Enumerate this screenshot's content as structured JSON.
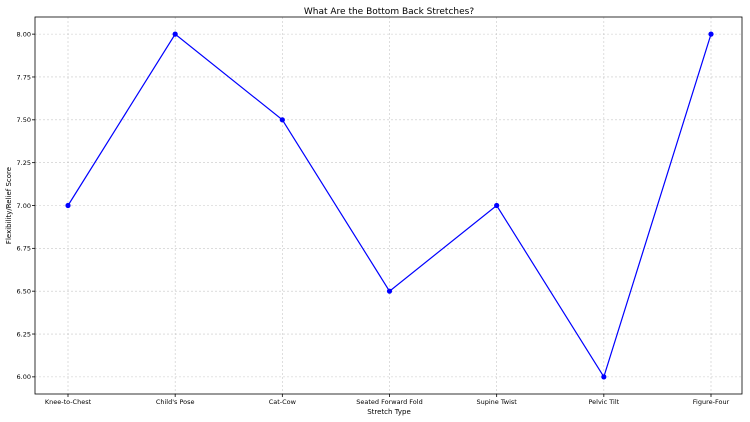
{
  "chart_data": {
    "type": "line",
    "title": "What Are the Bottom Back Stretches?",
    "xlabel": "Stretch Type",
    "ylabel": "Flexibility/Relief Score",
    "categories": [
      "Knee-to-Chest",
      "Child's Pose",
      "Cat-Cow",
      "Seated Forward Fold",
      "Supine Twist",
      "Pelvic Tilt",
      "Figure-Four"
    ],
    "series": [
      {
        "values": [
          7.0,
          8.0,
          7.5,
          6.5,
          7.0,
          6.0,
          8.0
        ],
        "color": "#0000ff"
      }
    ],
    "ylim": [
      5.9,
      8.1
    ],
    "yticks": [
      6.0,
      6.25,
      6.5,
      6.75,
      7.0,
      7.25,
      7.5,
      7.75,
      8.0
    ],
    "ytick_labels": [
      "6.00",
      "6.25",
      "6.50",
      "6.75",
      "7.00",
      "7.25",
      "7.50",
      "7.75",
      "8.00"
    ],
    "grid": true,
    "legend": "none"
  }
}
